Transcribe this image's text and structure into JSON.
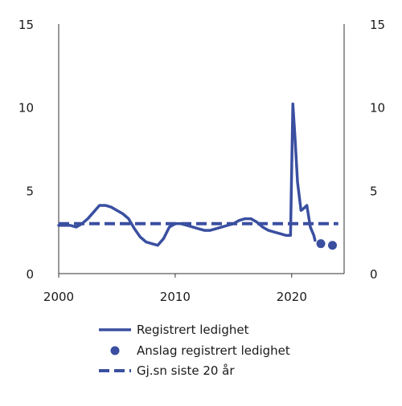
{
  "chart_data": {
    "type": "line",
    "title": "",
    "xlabel": "",
    "ylabel": "",
    "xlim": [
      2000,
      2024.5
    ],
    "ylim": [
      0,
      15
    ],
    "x_ticks": [
      "2000",
      "2010",
      "2020"
    ],
    "x_tick_values": [
      2000,
      2010,
      2020
    ],
    "y_ticks": [
      "0",
      "5",
      "10",
      "15"
    ],
    "y_tick_values": [
      0,
      5,
      10,
      15
    ],
    "grid": false,
    "colors": {
      "series": "#3a4fa0"
    },
    "series": [
      {
        "name": "Registrert ledighet",
        "style": "solid-line",
        "points": [
          [
            2000.0,
            2.9
          ],
          [
            2000.5,
            2.9
          ],
          [
            2001.0,
            2.9
          ],
          [
            2001.5,
            2.8
          ],
          [
            2002.0,
            3.0
          ],
          [
            2002.5,
            3.3
          ],
          [
            2003.0,
            3.7
          ],
          [
            2003.5,
            4.1
          ],
          [
            2004.0,
            4.1
          ],
          [
            2004.5,
            4.0
          ],
          [
            2005.0,
            3.8
          ],
          [
            2005.5,
            3.6
          ],
          [
            2006.0,
            3.3
          ],
          [
            2006.5,
            2.7
          ],
          [
            2007.0,
            2.2
          ],
          [
            2007.5,
            1.9
          ],
          [
            2008.0,
            1.8
          ],
          [
            2008.5,
            1.7
          ],
          [
            2009.0,
            2.1
          ],
          [
            2009.5,
            2.8
          ],
          [
            2010.0,
            3.0
          ],
          [
            2010.5,
            3.0
          ],
          [
            2011.0,
            2.9
          ],
          [
            2011.5,
            2.8
          ],
          [
            2012.0,
            2.7
          ],
          [
            2012.5,
            2.6
          ],
          [
            2013.0,
            2.6
          ],
          [
            2013.5,
            2.7
          ],
          [
            2014.0,
            2.8
          ],
          [
            2014.5,
            2.9
          ],
          [
            2015.0,
            3.0
          ],
          [
            2015.5,
            3.2
          ],
          [
            2016.0,
            3.3
          ],
          [
            2016.5,
            3.3
          ],
          [
            2017.0,
            3.1
          ],
          [
            2017.5,
            2.8
          ],
          [
            2018.0,
            2.6
          ],
          [
            2018.5,
            2.5
          ],
          [
            2019.0,
            2.4
          ],
          [
            2019.5,
            2.3
          ],
          [
            2019.9,
            2.3
          ],
          [
            2020.1,
            10.2
          ],
          [
            2020.3,
            8.0
          ],
          [
            2020.5,
            5.5
          ],
          [
            2020.8,
            3.8
          ],
          [
            2021.0,
            3.9
          ],
          [
            2021.3,
            4.1
          ],
          [
            2021.6,
            2.8
          ],
          [
            2021.9,
            2.3
          ],
          [
            2022.0,
            2.0
          ]
        ]
      },
      {
        "name": "Anslag registrert ledighet",
        "style": "points",
        "points": [
          [
            2022.5,
            1.8
          ],
          [
            2023.5,
            1.7
          ]
        ]
      },
      {
        "name": "Gj.sn siste 20 år",
        "style": "dashed-line",
        "points": [
          [
            2000.0,
            3.0
          ],
          [
            2024.0,
            3.0
          ]
        ]
      }
    ],
    "legend_position": "bottom"
  }
}
